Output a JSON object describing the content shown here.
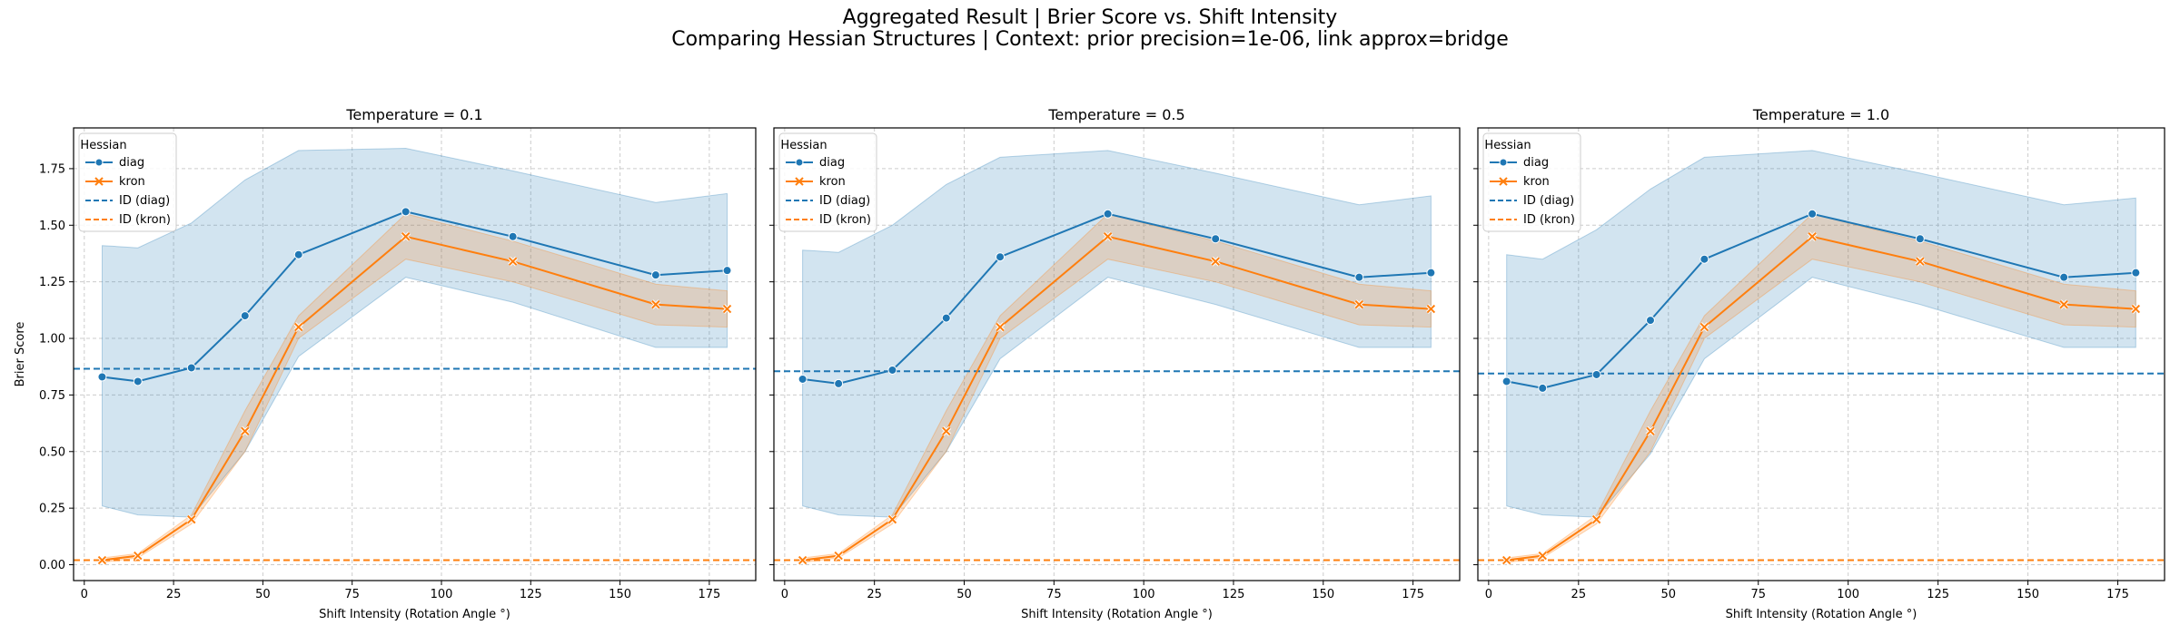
{
  "figure": {
    "title_line1": "Aggregated Result | Brier Score vs. Shift Intensity",
    "title_line2": "Comparing Hessian Structures | Context: prior precision=1e-06, link approx=bridge"
  },
  "colors": {
    "diag": "#1f77b4",
    "kron": "#ff7f0e",
    "grid": "#cccccc"
  },
  "chart_data": [
    {
      "type": "line",
      "title": "Temperature = 0.1",
      "xlabel": "Shift Intensity (Rotation Angle °)",
      "ylabel": "Brier Score",
      "xlim": [
        -3,
        188
      ],
      "ylim": [
        -0.07,
        1.93
      ],
      "xticks": [
        0,
        25,
        50,
        75,
        100,
        125,
        150,
        175
      ],
      "yticks": [
        0.0,
        0.25,
        0.5,
        0.75,
        1.0,
        1.25,
        1.5,
        1.75
      ],
      "x": [
        5,
        15,
        30,
        45,
        60,
        90,
        120,
        160,
        180
      ],
      "grid": true,
      "legend": {
        "title": "Hessian",
        "position": "upper left",
        "entries": [
          "diag",
          "kron",
          "ID (diag)",
          "ID (kron)"
        ]
      },
      "series": [
        {
          "name": "diag",
          "marker": "circle",
          "values": [
            0.83,
            0.81,
            0.87,
            1.1,
            1.37,
            1.56,
            1.45,
            1.28,
            1.3
          ],
          "ci_lower": [
            0.26,
            0.22,
            0.21,
            0.5,
            0.92,
            1.27,
            1.16,
            0.96,
            0.96
          ],
          "ci_upper": [
            1.41,
            1.4,
            1.51,
            1.7,
            1.83,
            1.84,
            1.74,
            1.6,
            1.64
          ]
        },
        {
          "name": "kron",
          "marker": "x",
          "values": [
            0.02,
            0.04,
            0.2,
            0.59,
            1.05,
            1.45,
            1.34,
            1.15,
            1.13
          ],
          "ci_lower": [
            0.01,
            0.03,
            0.18,
            0.5,
            1.0,
            1.35,
            1.25,
            1.06,
            1.05
          ],
          "ci_upper": [
            0.03,
            0.05,
            0.22,
            0.68,
            1.1,
            1.55,
            1.43,
            1.24,
            1.21
          ]
        }
      ],
      "hlines": [
        {
          "name": "ID (diag)",
          "value": 0.866,
          "style": "dashed"
        },
        {
          "name": "ID (kron)",
          "value": 0.02,
          "style": "dashed"
        }
      ]
    },
    {
      "type": "line",
      "title": "Temperature = 0.5",
      "xlabel": "Shift Intensity (Rotation Angle °)",
      "ylabel": "",
      "xlim": [
        -3,
        188
      ],
      "ylim": [
        -0.07,
        1.93
      ],
      "xticks": [
        0,
        25,
        50,
        75,
        100,
        125,
        150,
        175
      ],
      "yticks": [
        0.0,
        0.25,
        0.5,
        0.75,
        1.0,
        1.25,
        1.5,
        1.75
      ],
      "x": [
        5,
        15,
        30,
        45,
        60,
        90,
        120,
        160,
        180
      ],
      "grid": true,
      "legend": {
        "title": "Hessian",
        "position": "upper left",
        "entries": [
          "diag",
          "kron",
          "ID (diag)",
          "ID (kron)"
        ]
      },
      "series": [
        {
          "name": "diag",
          "marker": "circle",
          "values": [
            0.82,
            0.8,
            0.86,
            1.09,
            1.36,
            1.55,
            1.44,
            1.27,
            1.29
          ],
          "ci_lower": [
            0.26,
            0.22,
            0.21,
            0.5,
            0.91,
            1.27,
            1.15,
            0.96,
            0.96
          ],
          "ci_upper": [
            1.39,
            1.38,
            1.5,
            1.68,
            1.8,
            1.83,
            1.73,
            1.59,
            1.63
          ]
        },
        {
          "name": "kron",
          "marker": "x",
          "values": [
            0.02,
            0.04,
            0.2,
            0.59,
            1.05,
            1.45,
            1.34,
            1.15,
            1.13
          ],
          "ci_lower": [
            0.01,
            0.03,
            0.18,
            0.5,
            1.0,
            1.35,
            1.25,
            1.06,
            1.05
          ],
          "ci_upper": [
            0.03,
            0.05,
            0.22,
            0.68,
            1.1,
            1.55,
            1.43,
            1.24,
            1.21
          ]
        }
      ],
      "hlines": [
        {
          "name": "ID (diag)",
          "value": 0.855,
          "style": "dashed"
        },
        {
          "name": "ID (kron)",
          "value": 0.02,
          "style": "dashed"
        }
      ]
    },
    {
      "type": "line",
      "title": "Temperature = 1.0",
      "xlabel": "Shift Intensity (Rotation Angle °)",
      "ylabel": "",
      "xlim": [
        -3,
        188
      ],
      "ylim": [
        -0.07,
        1.93
      ],
      "xticks": [
        0,
        25,
        50,
        75,
        100,
        125,
        150,
        175
      ],
      "yticks": [
        0.0,
        0.25,
        0.5,
        0.75,
        1.0,
        1.25,
        1.5,
        1.75
      ],
      "x": [
        5,
        15,
        30,
        45,
        60,
        90,
        120,
        160,
        180
      ],
      "grid": true,
      "legend": {
        "title": "Hessian",
        "position": "upper left",
        "entries": [
          "diag",
          "kron",
          "ID (diag)",
          "ID (kron)"
        ]
      },
      "series": [
        {
          "name": "diag",
          "marker": "circle",
          "values": [
            0.81,
            0.78,
            0.84,
            1.08,
            1.35,
            1.55,
            1.44,
            1.27,
            1.29
          ],
          "ci_lower": [
            0.26,
            0.22,
            0.21,
            0.49,
            0.91,
            1.27,
            1.15,
            0.96,
            0.96
          ],
          "ci_upper": [
            1.37,
            1.35,
            1.48,
            1.66,
            1.8,
            1.83,
            1.73,
            1.59,
            1.62
          ]
        },
        {
          "name": "kron",
          "marker": "x",
          "values": [
            0.02,
            0.04,
            0.2,
            0.59,
            1.05,
            1.45,
            1.34,
            1.15,
            1.13
          ],
          "ci_lower": [
            0.01,
            0.03,
            0.18,
            0.5,
            1.0,
            1.35,
            1.25,
            1.06,
            1.05
          ],
          "ci_upper": [
            0.03,
            0.05,
            0.22,
            0.68,
            1.1,
            1.55,
            1.43,
            1.24,
            1.21
          ]
        }
      ],
      "hlines": [
        {
          "name": "ID (diag)",
          "value": 0.845,
          "style": "dashed"
        },
        {
          "name": "ID (kron)",
          "value": 0.02,
          "style": "dashed"
        }
      ]
    }
  ]
}
